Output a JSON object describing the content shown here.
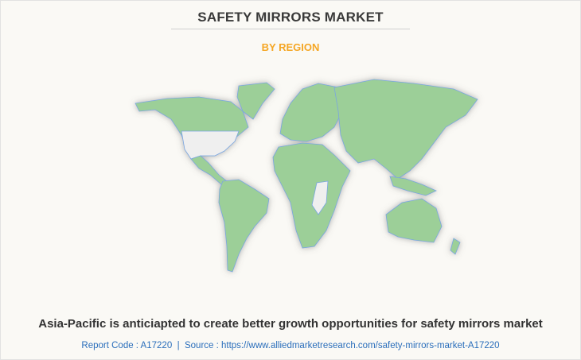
{
  "header": {
    "title": "SAFETY MIRRORS MARKET",
    "subtitle": "BY REGION"
  },
  "map": {
    "highlight_color": "#9ccf98",
    "neutral_color": "#efefef",
    "border_color": "#7aa6e0"
  },
  "footer": {
    "caption": "Asia-Pacific is anticiapted to create better growth opportunities for safety mirrors market",
    "source": "Report Code : A17220  |  Source : https://www.alliedmarketresearch.com/safety-mirrors-market-A17220"
  },
  "colors": {
    "title": "#3a3a3a",
    "subtitle": "#f5a623",
    "source": "#2a6ebb"
  }
}
